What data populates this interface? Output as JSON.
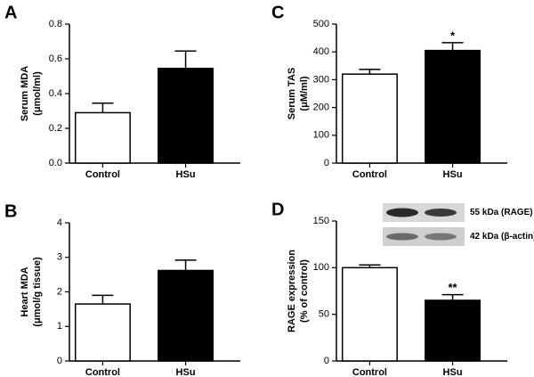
{
  "chart_data": [
    {
      "type": "bar",
      "panel": "A",
      "ylabel": [
        "Serum MDA",
        "(μmol/ml)"
      ],
      "categories": [
        "Control",
        "HSu"
      ],
      "values": [
        0.29,
        0.545
      ],
      "errors": [
        0.055,
        0.1
      ],
      "colors": [
        "#ffffff",
        "#000000"
      ],
      "significance": [
        null,
        null
      ],
      "ylim": [
        0,
        0.8
      ],
      "yticks": [
        {
          "value": 0,
          "label": "0.0"
        },
        0.2,
        0.4,
        0.6,
        0.8
      ]
    },
    {
      "type": "bar",
      "panel": "B",
      "ylabel": [
        "Heart MDA",
        "(μmol/g tissue)"
      ],
      "categories": [
        "Control",
        "HSu"
      ],
      "values": [
        1.65,
        2.62
      ],
      "errors": [
        0.25,
        0.3
      ],
      "colors": [
        "#ffffff",
        "#000000"
      ],
      "significance": [
        null,
        null
      ],
      "ylim": [
        0,
        4
      ],
      "yticks": [
        0,
        1,
        2,
        3,
        4
      ]
    },
    {
      "type": "bar",
      "panel": "C",
      "ylabel": [
        "Serum TAS",
        "(μM/ml)"
      ],
      "categories": [
        "Control",
        "HSu"
      ],
      "values": [
        320,
        405
      ],
      "errors": [
        17,
        28
      ],
      "colors": [
        "#ffffff",
        "#000000"
      ],
      "significance": [
        null,
        "*"
      ],
      "ylim": [
        0,
        500
      ],
      "yticks": [
        0,
        100,
        200,
        300,
        400,
        500
      ]
    },
    {
      "type": "bar",
      "panel": "D",
      "ylabel": [
        "RAGE expression",
        "(% of control)"
      ],
      "categories": [
        "Control",
        "HSu"
      ],
      "values": [
        100,
        65
      ],
      "errors": [
        3,
        6
      ],
      "colors": [
        "#ffffff",
        "#000000"
      ],
      "significance": [
        null,
        "**"
      ],
      "ylim": [
        0,
        150
      ],
      "yticks": [
        0,
        50,
        100,
        150
      ],
      "blot_labels": [
        "55 kDa (RAGE)",
        "42 kDa (β-actin)"
      ]
    }
  ]
}
